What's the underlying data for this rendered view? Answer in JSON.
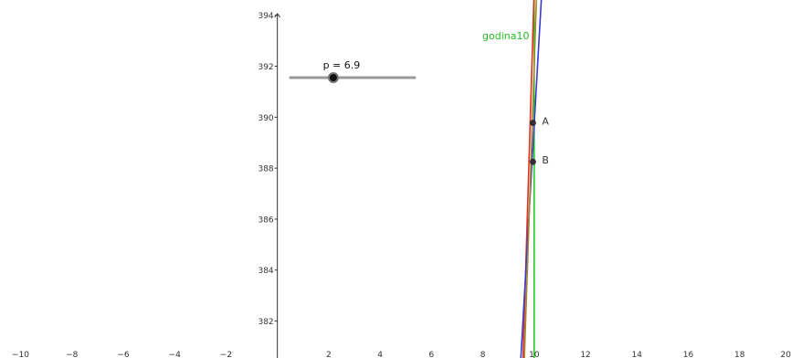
{
  "graphics": {
    "x_range": [
      -10.8,
      20
    ],
    "y_range": [
      380.55,
      394.6
    ],
    "x_ticks": [
      "−10",
      "−8",
      "−6",
      "−4",
      "−2",
      "2",
      "4",
      "6",
      "8",
      "10",
      "12",
      "14",
      "16",
      "18",
      "20"
    ],
    "y_ticks": [
      "382",
      "384",
      "386",
      "388",
      "390",
      "392",
      "394"
    ]
  },
  "slider": {
    "label": "p = 6.9",
    "value": 6.9,
    "min": 0,
    "max": 20
  },
  "points": [
    {
      "label": "A",
      "x": 9.95,
      "y": 389.78
    },
    {
      "label": "B",
      "x": 9.95,
      "y": 388.25
    }
  ],
  "lines": [
    {
      "name": "godina10",
      "label": "godina10",
      "color": "#22cc22",
      "p1": [
        10.0,
        380.0
      ],
      "p2": [
        10.0,
        395.0
      ],
      "labeled": true
    },
    {
      "name": "red-line",
      "label": "",
      "color": "#e03020",
      "p1": [
        9.55,
        380.0
      ],
      "p2": [
        10.0,
        395.0
      ],
      "labeled": false
    },
    {
      "name": "blue-line",
      "label": "",
      "color": "#3a3ad8",
      "p1": [
        9.45,
        380.0
      ],
      "p2": [
        10.3,
        395.0
      ],
      "labeled": false
    },
    {
      "name": "olive-line",
      "label": "",
      "color": "#a08a30",
      "p1": [
        9.6,
        380.0
      ],
      "p2": [
        10.1,
        395.0
      ],
      "labeled": false
    }
  ],
  "colors": {
    "axis": "#333333",
    "tick_label": "#333333",
    "point_fill": "#333333",
    "slider_track": "#999999",
    "godina10_label": "#22bb22"
  }
}
